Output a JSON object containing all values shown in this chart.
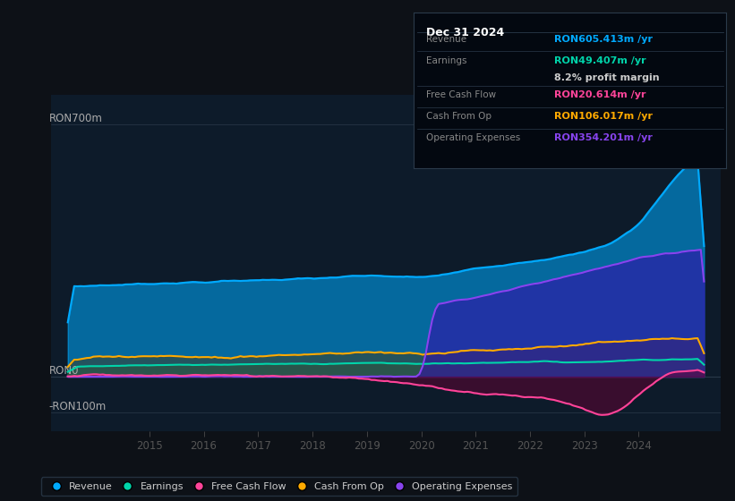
{
  "bg_color": "#0d1117",
  "plot_bg_color": "#0d1b2a",
  "ylim": [
    -150,
    780
  ],
  "xlim": [
    2013.2,
    2025.5
  ],
  "xticks": [
    2015,
    2016,
    2017,
    2018,
    2019,
    2020,
    2021,
    2022,
    2023,
    2024
  ],
  "gridlines": [
    700,
    0,
    -100
  ],
  "ylabel_positions": [
    {
      "label": "RON700m",
      "value": 700
    },
    {
      "label": "RON0",
      "value": 0
    },
    {
      "label": "-RON100m",
      "value": -100
    }
  ],
  "series_colors": {
    "revenue": "#00aaff",
    "earnings": "#00d4aa",
    "fcf": "#ff4499",
    "cashfromop": "#ffaa00",
    "opex": "#8844ee"
  },
  "tooltip": {
    "title": "Dec 31 2024",
    "rows": [
      {
        "label": "Revenue",
        "value": "RON605.413m /yr",
        "color": "#00aaff",
        "sep_before": true
      },
      {
        "label": "Earnings",
        "value": "RON49.407m /yr",
        "color": "#00d4aa",
        "sep_before": true
      },
      {
        "label": "",
        "value": "8.2% profit margin",
        "color": "#cccccc",
        "sep_before": false
      },
      {
        "label": "Free Cash Flow",
        "value": "RON20.614m /yr",
        "color": "#ff4499",
        "sep_before": true
      },
      {
        "label": "Cash From Op",
        "value": "RON106.017m /yr",
        "color": "#ffaa00",
        "sep_before": true
      },
      {
        "label": "Operating Expenses",
        "value": "RON354.201m /yr",
        "color": "#8844ee",
        "sep_before": true
      }
    ]
  },
  "legend_items": [
    {
      "label": "Revenue",
      "color": "#00aaff"
    },
    {
      "label": "Earnings",
      "color": "#00d4aa"
    },
    {
      "label": "Free Cash Flow",
      "color": "#ff4499"
    },
    {
      "label": "Cash From Op",
      "color": "#ffaa00"
    },
    {
      "label": "Operating Expenses",
      "color": "#8844ee"
    }
  ]
}
